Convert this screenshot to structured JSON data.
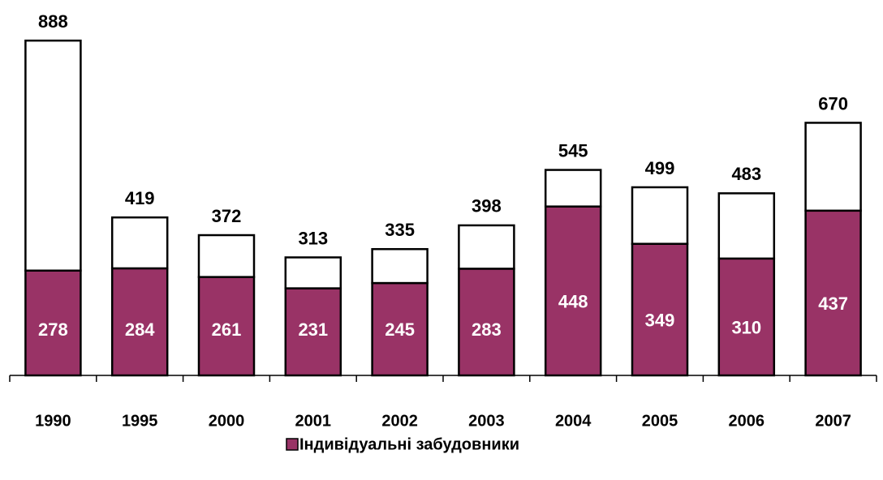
{
  "chart_data": {
    "type": "stacked_bar",
    "categories": [
      "1990",
      "1995",
      "2000",
      "2001",
      "2002",
      "2003",
      "2004",
      "2005",
      "2006",
      "2007"
    ],
    "series": [
      {
        "name": "Індивідуальні забудовники",
        "color": "#993366",
        "values": [
          278,
          284,
          261,
          231,
          245,
          283,
          448,
          349,
          310,
          437
        ]
      },
      {
        "color": "#ffffff",
        "values": [
          610,
          135,
          111,
          82,
          90,
          115,
          97,
          150,
          173,
          233
        ]
      }
    ],
    "totals": [
      888,
      419,
      372,
      313,
      335,
      398,
      545,
      499,
      483,
      670
    ],
    "ylim": [
      0,
      900
    ],
    "legend": "bottom"
  }
}
